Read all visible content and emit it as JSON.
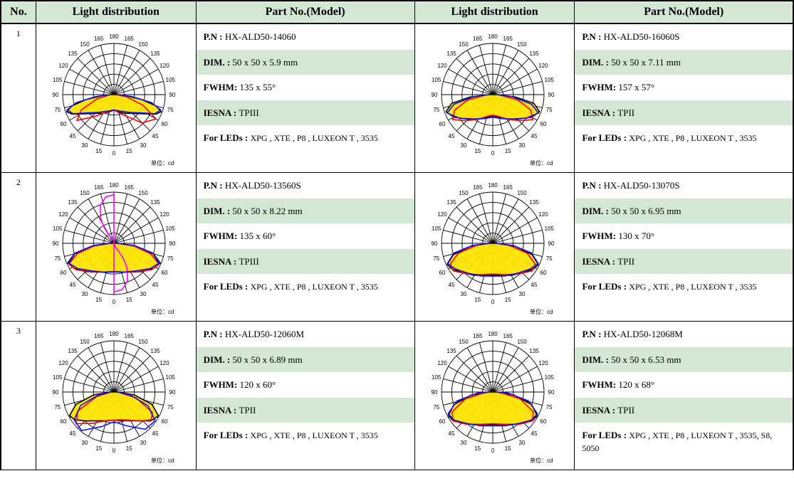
{
  "colors": {
    "header_bg": "#d4e6d4",
    "row_alt_bg": "#d4e6d4",
    "border": "#000000",
    "lobe_fill": "#ffe500",
    "curve_red": "#ff0000",
    "curve_blue": "#1010ff",
    "curve_magenta": "#ff00ff"
  },
  "headers": {
    "no": "No.",
    "dist": "Light distribution",
    "model": "Part No.(Model)"
  },
  "spec_labels": {
    "pn": "P.N :",
    "dim": "DIM. :",
    "fwhm": "FWHM:",
    "iesna": "IESNA :",
    "leds": "For LEDs :"
  },
  "polar": {
    "angle_labels": [
      "0",
      "15",
      "30",
      "45",
      "60",
      "75",
      "90",
      "105",
      "120",
      "135",
      "150",
      "165",
      "180",
      "165",
      "150",
      "135",
      "120",
      "105",
      "90",
      "75",
      "60",
      "45",
      "30",
      "15"
    ],
    "unit_text": "单位：cd",
    "ring_count": 5,
    "ring_style": {
      "stroke": "#000000",
      "stroke_width": 0.9
    },
    "spoke_style": {
      "stroke": "#000000",
      "stroke_width": 0.9
    },
    "angle_label_fontsize": 8
  },
  "rows": [
    {
      "no": "1",
      "left": {
        "specs": {
          "pn": "HX-ALD50-14060",
          "dim": "50 x 50 x 5.9 mm",
          "fwhm": "135 x 55°",
          "iesna": " TPIII",
          "leds": "XPG , XTE , P8  , LUXEON T , 3535"
        },
        "chart": {
          "fill_curve": [
            [
              0,
              0.3
            ],
            [
              15,
              0.35
            ],
            [
              30,
              0.42
            ],
            [
              45,
              0.52
            ],
            [
              55,
              0.65
            ],
            [
              65,
              0.9
            ],
            [
              70,
              0.98
            ],
            [
              75,
              0.85
            ],
            [
              80,
              0.55
            ],
            [
              85,
              0.22
            ],
            [
              90,
              0.05
            ]
          ],
          "fill_mirror": true,
          "overlays": [
            {
              "color": "#ff0000",
              "mirror": false,
              "pts": [
                [
                  -85,
                  0.1
                ],
                [
                  -75,
                  0.35
                ],
                [
                  -65,
                  0.7
                ],
                [
                  -55,
                  0.88
                ],
                [
                  -40,
                  0.55
                ],
                [
                  -20,
                  0.35
                ],
                [
                  0,
                  0.3
                ],
                [
                  20,
                  0.4
                ],
                [
                  45,
                  0.78
                ],
                [
                  60,
                  0.95
                ],
                [
                  70,
                  0.6
                ],
                [
                  80,
                  0.25
                ],
                [
                  85,
                  0.08
                ]
              ]
            },
            {
              "color": "#1010ff",
              "mirror": true,
              "pts": [
                [
                  0,
                  0.3
                ],
                [
                  20,
                  0.34
                ],
                [
                  40,
                  0.45
                ],
                [
                  55,
                  0.62
                ],
                [
                  65,
                  0.88
                ],
                [
                  72,
                  0.96
                ],
                [
                  78,
                  0.75
                ],
                [
                  84,
                  0.35
                ],
                [
                  90,
                  0.06
                ]
              ]
            }
          ]
        }
      },
      "right": {
        "specs": {
          "pn": "HX-ALD50-16060S",
          "dim": "50 x 50 x 7.11 mm",
          "fwhm": "157 x 57°",
          "iesna": " TPII",
          "leds": "XPG , XTE , P8  , LUXEON T , 3535"
        },
        "chart": {
          "fill_curve": [
            [
              0,
              0.42
            ],
            [
              15,
              0.46
            ],
            [
              30,
              0.55
            ],
            [
              45,
              0.68
            ],
            [
              60,
              0.88
            ],
            [
              70,
              0.97
            ],
            [
              78,
              0.82
            ],
            [
              84,
              0.45
            ],
            [
              90,
              0.08
            ]
          ],
          "fill_mirror": true,
          "overlays": [
            {
              "color": "#ff0000",
              "mirror": true,
              "pts": [
                [
                  0,
                  0.4
                ],
                [
                  15,
                  0.44
                ],
                [
                  30,
                  0.55
                ],
                [
                  45,
                  0.72
                ],
                [
                  58,
                  0.92
                ],
                [
                  68,
                  0.8
                ],
                [
                  78,
                  0.5
                ],
                [
                  86,
                  0.15
                ]
              ]
            },
            {
              "color": "#1010ff",
              "mirror": true,
              "pts": [
                [
                  0,
                  0.44
                ],
                [
                  20,
                  0.5
                ],
                [
                  40,
                  0.62
                ],
                [
                  55,
                  0.8
                ],
                [
                  68,
                  0.96
                ],
                [
                  76,
                  0.78
                ],
                [
                  84,
                  0.38
                ],
                [
                  90,
                  0.06
                ]
              ]
            }
          ]
        }
      }
    },
    {
      "no": "2",
      "left": {
        "specs": {
          "pn": "HX-ALD50-13560S",
          "dim": "50 x 50 x 8.22 mm",
          "fwhm": "135 x 60°",
          "iesna": " TPIII",
          "leds": "XPG , XTE , P8  , LUXEON T , 3535"
        },
        "chart": {
          "fill_curve": [
            [
              0,
              0.55
            ],
            [
              15,
              0.58
            ],
            [
              30,
              0.65
            ],
            [
              45,
              0.78
            ],
            [
              58,
              0.92
            ],
            [
              67,
              0.98
            ],
            [
              75,
              0.8
            ],
            [
              82,
              0.45
            ],
            [
              90,
              0.08
            ]
          ],
          "fill_mirror": true,
          "overlays": [
            {
              "color": "#ff00ff",
              "mirror": false,
              "closed": true,
              "pts": [
                [
                  0,
                  0.95
                ],
                [
                  10,
                  0.92
                ],
                [
                  20,
                  0.78
                ],
                [
                  28,
                  0.55
                ],
                [
                  32,
                  0.35
                ],
                [
                  30,
                  0.18
                ],
                [
                  20,
                  0.08
                ],
                [
                  0,
                  0.04
                ],
                [
                  -20,
                  0.08
                ],
                [
                  -30,
                  0.18
                ],
                [
                  -32,
                  0.35
                ],
                [
                  -28,
                  0.55
                ],
                [
                  -20,
                  0.78
                ],
                [
                  -10,
                  0.92
                ],
                [
                  0,
                  0.95
                ]
              ],
              "up_down": true
            },
            {
              "color": "#ff0000",
              "mirror": true,
              "pts": [
                [
                  0,
                  0.55
                ],
                [
                  20,
                  0.6
                ],
                [
                  40,
                  0.72
                ],
                [
                  55,
                  0.9
                ],
                [
                  65,
                  0.97
                ],
                [
                  74,
                  0.75
                ],
                [
                  82,
                  0.4
                ],
                [
                  90,
                  0.08
                ]
              ]
            },
            {
              "color": "#1010ff",
              "mirror": true,
              "pts": [
                [
                  0,
                  0.56
                ],
                [
                  20,
                  0.6
                ],
                [
                  40,
                  0.7
                ],
                [
                  55,
                  0.86
                ],
                [
                  66,
                  0.96
                ],
                [
                  76,
                  0.78
                ],
                [
                  84,
                  0.4
                ],
                [
                  90,
                  0.07
                ]
              ]
            }
          ]
        }
      },
      "right": {
        "specs": {
          "pn": "HX-ALD50-13070S",
          "dim": "50 x 50 x 6.95 mm",
          "fwhm": "130 x 70°",
          "iesna": " TPII",
          "leds": "XPG , XTE , P8  , LUXEON T , 3535"
        },
        "chart": {
          "fill_curve": [
            [
              0,
              0.62
            ],
            [
              15,
              0.65
            ],
            [
              30,
              0.72
            ],
            [
              45,
              0.82
            ],
            [
              58,
              0.94
            ],
            [
              65,
              0.98
            ],
            [
              74,
              0.8
            ],
            [
              82,
              0.45
            ],
            [
              90,
              0.08
            ]
          ],
          "fill_mirror": true,
          "overlays": [
            {
              "color": "#ff0000",
              "mirror": true,
              "pts": [
                [
                  0,
                  0.6
                ],
                [
                  20,
                  0.65
                ],
                [
                  40,
                  0.78
                ],
                [
                  55,
                  0.94
                ],
                [
                  64,
                  0.92
                ],
                [
                  74,
                  0.7
                ],
                [
                  84,
                  0.3
                ],
                [
                  90,
                  0.06
                ]
              ]
            },
            {
              "color": "#1010ff",
              "mirror": true,
              "pts": [
                [
                  0,
                  0.64
                ],
                [
                  20,
                  0.68
                ],
                [
                  40,
                  0.76
                ],
                [
                  55,
                  0.88
                ],
                [
                  66,
                  0.97
                ],
                [
                  76,
                  0.78
                ],
                [
                  84,
                  0.4
                ],
                [
                  90,
                  0.06
                ]
              ]
            }
          ]
        }
      }
    },
    {
      "no": "3",
      "left": {
        "specs": {
          "pn": "HX-ALD50-12060M",
          "dim": "50 x 50 x 6.89 mm",
          "fwhm": "120 x 60°",
          "iesna": " TPII",
          "leds": "XPG , XTE , P8  , LUXEON T , 3535"
        },
        "chart": {
          "fill_curve": [
            [
              0,
              0.55
            ],
            [
              15,
              0.58
            ],
            [
              30,
              0.65
            ],
            [
              45,
              0.8
            ],
            [
              55,
              0.94
            ],
            [
              62,
              0.98
            ],
            [
              72,
              0.78
            ],
            [
              82,
              0.4
            ],
            [
              90,
              0.06
            ]
          ],
          "fill_mirror": true,
          "overlays": [
            {
              "color": "#ff0000",
              "mirror": false,
              "pts": [
                [
                  -85,
                  0.08
                ],
                [
                  -75,
                  0.35
                ],
                [
                  -62,
                  0.8
                ],
                [
                  -50,
                  0.96
                ],
                [
                  -35,
                  0.75
                ],
                [
                  -15,
                  0.58
                ],
                [
                  0,
                  0.55
                ],
                [
                  15,
                  0.56
                ],
                [
                  35,
                  0.68
                ],
                [
                  52,
                  0.92
                ],
                [
                  62,
                  0.85
                ],
                [
                  75,
                  0.45
                ],
                [
                  85,
                  0.1
                ]
              ]
            },
            {
              "color": "#1010ff",
              "mirror": false,
              "pts": [
                [
                  -90,
                  0.05
                ],
                [
                  -80,
                  0.3
                ],
                [
                  -68,
                  0.7
                ],
                [
                  -55,
                  0.95
                ],
                [
                  -40,
                  0.98
                ],
                [
                  -20,
                  0.72
                ],
                [
                  0,
                  0.58
                ],
                [
                  20,
                  0.7
                ],
                [
                  40,
                  0.95
                ],
                [
                  55,
                  0.98
                ],
                [
                  68,
                  0.72
                ],
                [
                  80,
                  0.32
                ],
                [
                  90,
                  0.05
                ]
              ]
            }
          ]
        }
      },
      "right": {
        "specs": {
          "pn": "HX-ALD50-12068M",
          "dim": "50 x 50 x 6.53 mm",
          "fwhm": "120 x 68°",
          "iesna": " TPII",
          "leds": "XPG , XTE , P8  , LUXEON T , 3535, S8, 5050"
        },
        "chart": {
          "fill_curve": [
            [
              0,
              0.64
            ],
            [
              15,
              0.67
            ],
            [
              30,
              0.74
            ],
            [
              45,
              0.86
            ],
            [
              55,
              0.96
            ],
            [
              62,
              0.98
            ],
            [
              72,
              0.8
            ],
            [
              82,
              0.42
            ],
            [
              90,
              0.06
            ]
          ],
          "fill_mirror": true,
          "overlays": [
            {
              "color": "#ff0000",
              "mirror": true,
              "pts": [
                [
                  0,
                  0.62
                ],
                [
                  20,
                  0.67
                ],
                [
                  40,
                  0.82
                ],
                [
                  54,
                  0.96
                ],
                [
                  64,
                  0.88
                ],
                [
                  76,
                  0.55
                ],
                [
                  86,
                  0.15
                ]
              ]
            },
            {
              "color": "#1010ff",
              "mirror": true,
              "pts": [
                [
                  0,
                  0.66
                ],
                [
                  20,
                  0.7
                ],
                [
                  40,
                  0.8
                ],
                [
                  54,
                  0.93
                ],
                [
                  64,
                  0.97
                ],
                [
                  76,
                  0.72
                ],
                [
                  86,
                  0.3
                ],
                [
                  92,
                  0.05
                ]
              ]
            }
          ]
        }
      }
    }
  ]
}
